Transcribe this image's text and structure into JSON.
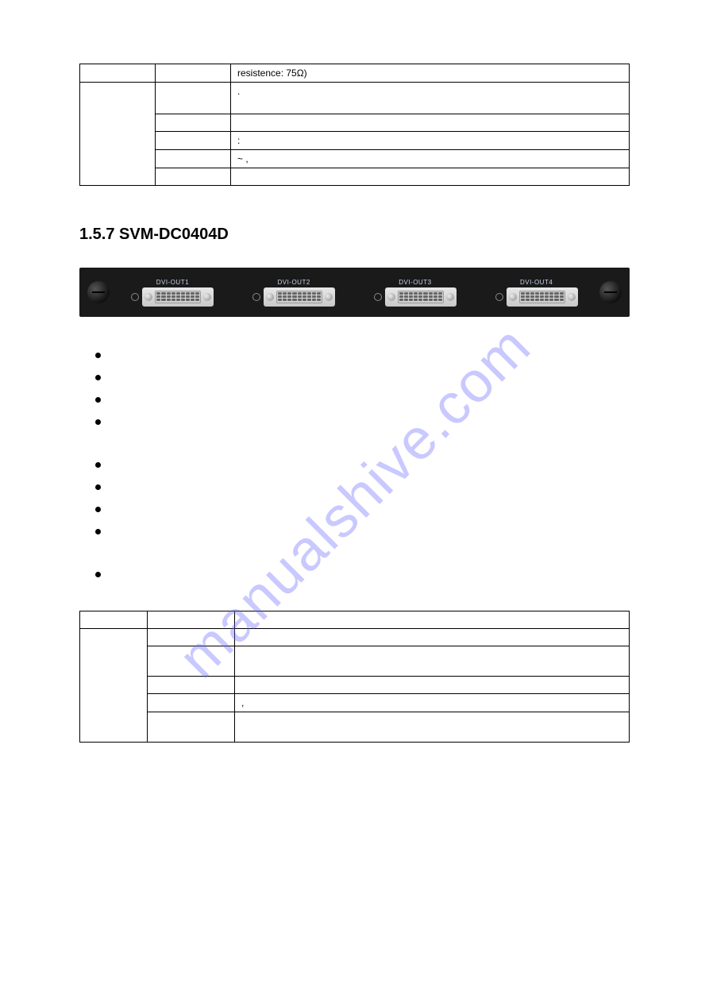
{
  "watermark": "manualshive.com",
  "table1": {
    "r1c3": "resistence: 75Ω)",
    "r2c3": ".",
    "r3c3": "",
    "r4c3": ":",
    "r5c3": "~     ,",
    "r6c3": ""
  },
  "section_title": "1.5.7 SVM-DC0404D",
  "panel": {
    "ports": [
      "DVI-OUT1",
      "DVI-OUT2",
      "DVI-OUT3",
      "DVI-OUT4"
    ],
    "panel_bg": "#1a1a1a",
    "label_color": "#c8d4e8"
  },
  "features": [
    "",
    "",
    "",
    "",
    "",
    "",
    "",
    "",
    ""
  ],
  "table2": {
    "r1c1": "",
    "r1c2": "",
    "r1c3": "",
    "r2c2": "",
    "r2c3": "",
    "r3c2": "",
    "r3c3": "",
    "r4c2": "",
    "r4c3": "",
    "r5c2": "",
    "r5c3": ",",
    "r6c2": "",
    "r6c3": ""
  }
}
